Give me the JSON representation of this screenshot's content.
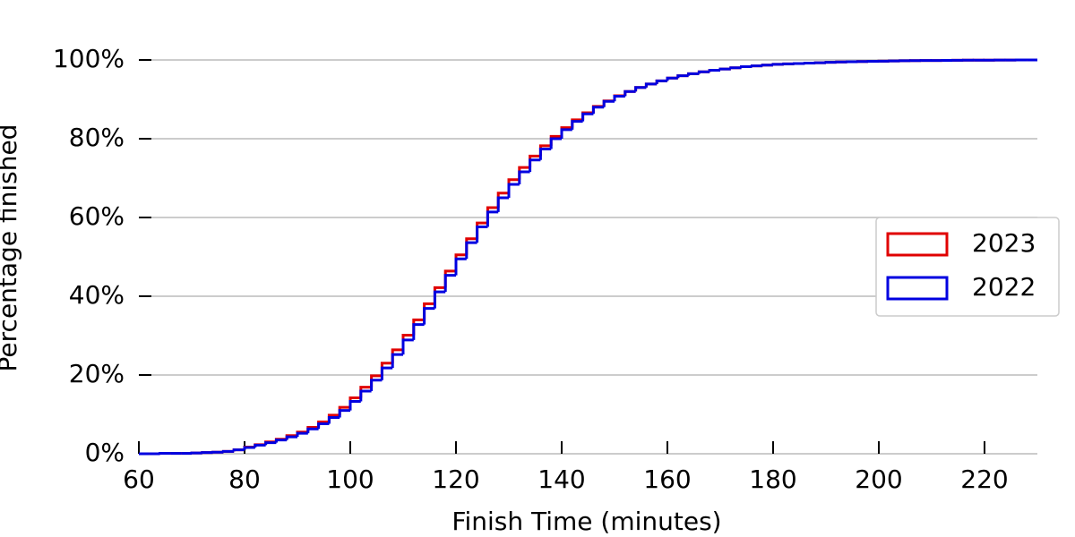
{
  "chart_data": {
    "type": "histogram",
    "cumulative": true,
    "xlabel": "Finish Time (minutes)",
    "ylabel": "Percentage finished",
    "xlim": [
      60,
      230
    ],
    "ylim": [
      0,
      105
    ],
    "xticks": [
      60,
      80,
      100,
      120,
      140,
      160,
      180,
      200,
      220
    ],
    "yticks": [
      {
        "value": 0,
        "label": "0%"
      },
      {
        "value": 20,
        "label": "20%"
      },
      {
        "value": 40,
        "label": "40%"
      },
      {
        "value": 60,
        "label": "60%"
      },
      {
        "value": 80,
        "label": "80%"
      },
      {
        "value": 100,
        "label": "100%"
      }
    ],
    "grid": true,
    "legend": "right",
    "bins": [
      60,
      62,
      64,
      66,
      68,
      70,
      72,
      74,
      76,
      78,
      80,
      82,
      84,
      86,
      88,
      90,
      92,
      94,
      96,
      98,
      100,
      102,
      104,
      106,
      108,
      110,
      112,
      114,
      116,
      118,
      120,
      122,
      124,
      126,
      128,
      130,
      132,
      134,
      136,
      138,
      140,
      142,
      144,
      146,
      148,
      150,
      152,
      154,
      156,
      158,
      160,
      162,
      164,
      166,
      168,
      170,
      172,
      174,
      176,
      178,
      180,
      182,
      184,
      186,
      188,
      190,
      192,
      194,
      196,
      198,
      200,
      202,
      204,
      206,
      208,
      210,
      212,
      214,
      216,
      218,
      220,
      222,
      224,
      226,
      228,
      230
    ],
    "series": [
      {
        "name": "2023",
        "color": "#e00000",
        "values": [
          0,
          0,
          0.1,
          0.1,
          0.1,
          0.2,
          0.3,
          0.4,
          0.6,
          1.0,
          1.7,
          2.3,
          3.0,
          3.7,
          4.6,
          5.5,
          6.7,
          8.1,
          9.8,
          11.8,
          14.2,
          16.9,
          19.8,
          23.0,
          26.4,
          30.1,
          34.0,
          38.1,
          42.2,
          46.4,
          50.5,
          54.6,
          58.6,
          62.5,
          66.2,
          69.6,
          72.7,
          75.6,
          78.2,
          80.6,
          82.8,
          84.8,
          86.6,
          88.2,
          89.6,
          90.9,
          92.0,
          93.0,
          93.9,
          94.7,
          95.4,
          96.0,
          96.5,
          97.0,
          97.4,
          97.7,
          98.0,
          98.3,
          98.5,
          98.7,
          98.9,
          99.0,
          99.1,
          99.2,
          99.3,
          99.4,
          99.5,
          99.55,
          99.6,
          99.65,
          99.7,
          99.75,
          99.8,
          99.82,
          99.85,
          99.87,
          99.9,
          99.91,
          99.93,
          99.94,
          99.95,
          99.96,
          99.98,
          99.99,
          100
        ]
      },
      {
        "name": "2022",
        "color": "#0000e0",
        "values": [
          0,
          0,
          0.1,
          0.1,
          0.1,
          0.2,
          0.3,
          0.4,
          0.6,
          1.0,
          1.6,
          2.2,
          2.8,
          3.5,
          4.3,
          5.2,
          6.3,
          7.6,
          9.2,
          11.0,
          13.3,
          15.9,
          18.7,
          21.8,
          25.2,
          28.9,
          32.8,
          36.9,
          41.1,
          45.3,
          49.5,
          53.6,
          57.6,
          61.4,
          65.0,
          68.4,
          71.6,
          74.6,
          77.4,
          80.0,
          82.3,
          84.4,
          86.3,
          88.0,
          89.5,
          90.8,
          92.0,
          93.0,
          93.9,
          94.7,
          95.4,
          96.0,
          96.5,
          97.0,
          97.4,
          97.7,
          98.0,
          98.3,
          98.5,
          98.7,
          98.9,
          99.0,
          99.1,
          99.2,
          99.3,
          99.4,
          99.5,
          99.55,
          99.6,
          99.65,
          99.7,
          99.75,
          99.8,
          99.82,
          99.85,
          99.87,
          99.9,
          99.91,
          99.93,
          99.94,
          99.95,
          99.96,
          99.98,
          99.99,
          100
        ]
      }
    ]
  }
}
